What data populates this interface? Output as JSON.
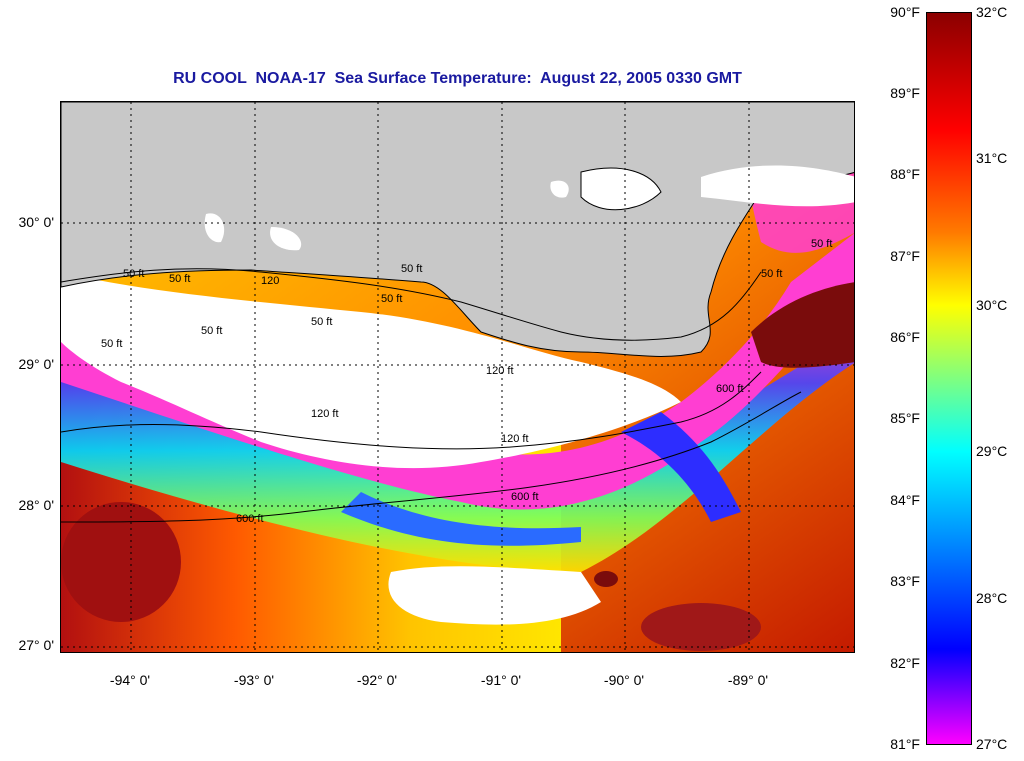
{
  "title": "RU COOL  NOAA-17  Sea Surface Temperature:  August 22, 2005 0330 GMT",
  "map": {
    "lat_labels": [
      "30° 0'",
      "29° 0'",
      "28° 0'",
      "27° 0'"
    ],
    "lon_labels": [
      "-94° 0'",
      "-93° 0'",
      "-92° 0'",
      "-91° 0'",
      "-90° 0'",
      "-89° 0'"
    ],
    "contour_labels": [
      "50 ft",
      "50 ft",
      "50 ft",
      "50 ft",
      "50 ft",
      "50 ft",
      "120",
      "50 ft",
      "120 ft",
      "120 ft",
      "120 ft",
      "600 ft",
      "600 ft",
      "600 ft",
      "50 ft",
      "50 ft"
    ],
    "land_color": "#c8c8c8",
    "cloud_color": "#ffffff"
  },
  "colorbar": {
    "fahrenheit_labels": [
      "90°F",
      "89°F",
      "88°F",
      "87°F",
      "86°F",
      "85°F",
      "84°F",
      "83°F",
      "82°F",
      "81°F"
    ],
    "celsius_labels": [
      "32°C",
      "31°C",
      "30°C",
      "29°C",
      "28°C",
      "27°C"
    ],
    "gradient_stops": [
      "#8b0000",
      "#ff0000",
      "#ff7a00",
      "#ffff00",
      "#00ffff",
      "#0000ff",
      "#ff00ff"
    ]
  }
}
